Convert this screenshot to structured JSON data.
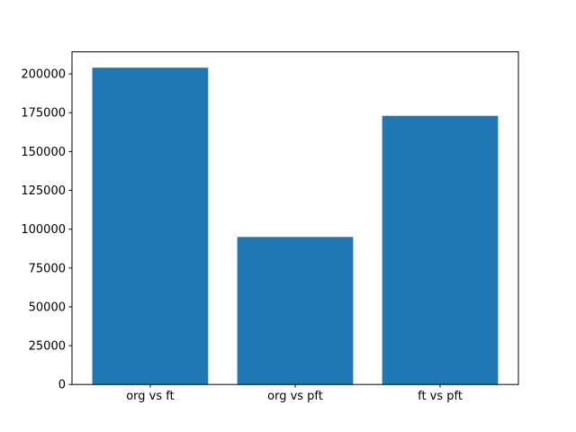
{
  "figure": {
    "background": "#ffffff",
    "frame_color": "#000000",
    "text_color": "#000000"
  },
  "chart_data": {
    "type": "bar",
    "categories": [
      "org vs ft",
      "org vs pft",
      "ft vs pft"
    ],
    "values": [
      204000,
      95000,
      173000
    ],
    "title": "",
    "xlabel": "",
    "ylabel": "",
    "ylim": [
      0,
      214200
    ],
    "yticks": [
      0,
      25000,
      50000,
      75000,
      100000,
      125000,
      150000,
      175000,
      200000
    ],
    "ytick_labels": [
      "0",
      "25000",
      "50000",
      "75000",
      "100000",
      "125000",
      "150000",
      "175000",
      "200000"
    ],
    "bar_color": "#1f77b4",
    "bar_width_fraction": 0.8,
    "grid": false,
    "legend": null
  }
}
